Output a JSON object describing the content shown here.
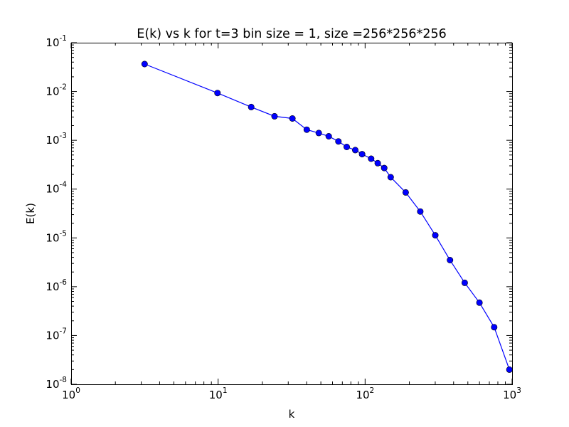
{
  "chart_data": {
    "type": "line",
    "title": "E(k) vs k for t=3 bin size = 1, size =256*256*256",
    "xlabel": "k",
    "ylabel": "E(k)",
    "xscale": "log",
    "yscale": "log",
    "xlim": [
      1,
      1000
    ],
    "ylim": [
      1e-08,
      0.1
    ],
    "x_ticks": [
      {
        "value": 1,
        "base": "10",
        "exp": "0"
      },
      {
        "value": 10,
        "base": "10",
        "exp": "1"
      },
      {
        "value": 100,
        "base": "10",
        "exp": "2"
      },
      {
        "value": 1000,
        "base": "10",
        "exp": "3"
      }
    ],
    "y_ticks": [
      {
        "value": 0.1,
        "base": "10",
        "exp": "-1"
      },
      {
        "value": 0.01,
        "base": "10",
        "exp": "-2"
      },
      {
        "value": 0.001,
        "base": "10",
        "exp": "-3"
      },
      {
        "value": 0.0001,
        "base": "10",
        "exp": "-4"
      },
      {
        "value": 1e-05,
        "base": "10",
        "exp": "-5"
      },
      {
        "value": 1e-06,
        "base": "10",
        "exp": "-6"
      },
      {
        "value": 1e-07,
        "base": "10",
        "exp": "-7"
      },
      {
        "value": 1e-08,
        "base": "10",
        "exp": "-8"
      }
    ],
    "grid": false,
    "legend": "none",
    "series": [
      {
        "color": "#0000ff",
        "marker": "circle",
        "x": [
          3.16,
          9.9,
          16.8,
          24.2,
          32.0,
          40.1,
          48.4,
          56.6,
          65.8,
          75.0,
          85.7,
          95.4,
          109.9,
          121.9,
          134.9,
          149.3,
          188.8,
          237.4,
          300.1,
          378.0,
          476.3,
          599.8,
          755.0,
          958.1
        ],
        "y": [
          0.0365,
          0.0093,
          0.0048,
          0.0031,
          0.0028,
          0.00165,
          0.00141,
          0.00121,
          0.00095,
          0.00073,
          0.00063,
          0.00052,
          0.00042,
          0.00034,
          0.00027,
          0.000175,
          8.55e-05,
          3.47e-05,
          1.13e-05,
          3.5e-06,
          1.2e-06,
          4.7e-07,
          1.48e-07,
          2e-08
        ]
      }
    ]
  }
}
